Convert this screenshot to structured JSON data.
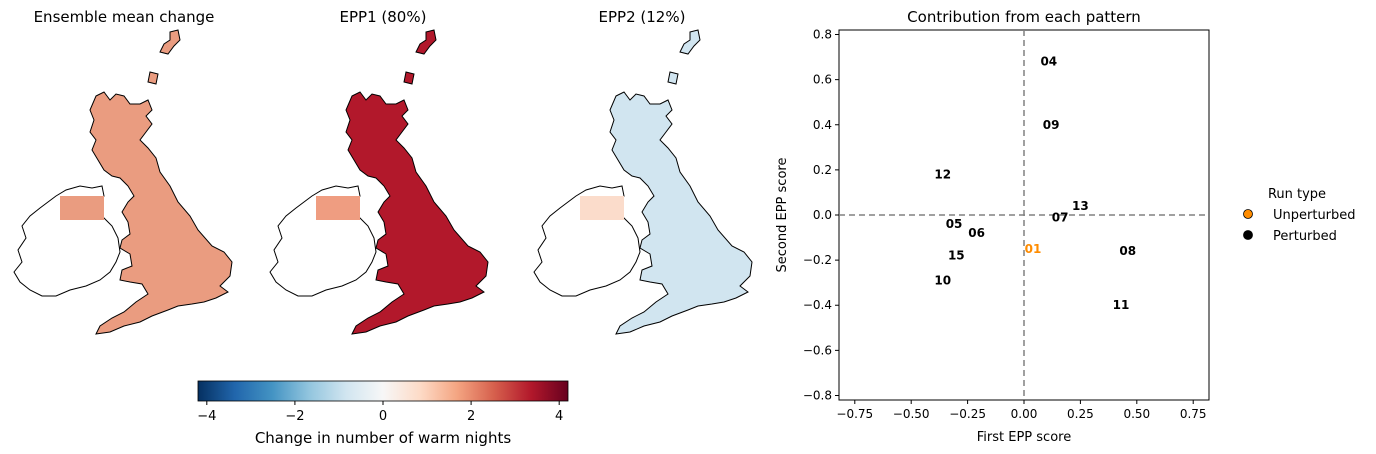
{
  "maps": {
    "panels": [
      {
        "title": "Ensemble mean change",
        "fill": "#ea9c80",
        "ireland_fill": "#ea9c80",
        "uk_fill": "#ea9c80"
      },
      {
        "title": "EPP1 (80%)",
        "fill": "#a51a2b",
        "ireland_fill": "#ef9d81",
        "uk_fill": "#b2182b"
      },
      {
        "title": "EPP2 (12%)",
        "fill": "#d6e7f1",
        "ireland_fill": "#fbdccb",
        "uk_fill": "#d1e5f0"
      }
    ],
    "colorbar": {
      "label": "Change in number of warm nights",
      "min": -4.2,
      "max": 4.2,
      "ticks": [
        -4,
        -2,
        0,
        2,
        4
      ],
      "tick_labels": [
        "−4",
        "−2",
        "0",
        "2",
        "4"
      ],
      "colormap": "RdBu_r",
      "colors": [
        "#053061",
        "#2166ac",
        "#4393c3",
        "#92c5de",
        "#d1e5f0",
        "#f7f7f7",
        "#fddbc7",
        "#f4a582",
        "#d6604d",
        "#b2182b",
        "#67001f"
      ]
    }
  },
  "chart_data": {
    "type": "scatter",
    "title": "Contribution from each pattern",
    "xlabel": "First EPP score",
    "ylabel": "Second EPP score",
    "xlim": [
      -0.82,
      0.82
    ],
    "ylim": [
      -0.82,
      0.82
    ],
    "xticks": [
      -0.75,
      -0.5,
      -0.25,
      0.0,
      0.25,
      0.5,
      0.75
    ],
    "xtick_labels": [
      "−0.75",
      "−0.50",
      "−0.25",
      "0.00",
      "0.25",
      "0.50",
      "0.75"
    ],
    "yticks": [
      -0.8,
      -0.6,
      -0.4,
      -0.2,
      0.0,
      0.2,
      0.4,
      0.6,
      0.8
    ],
    "ytick_labels": [
      "−0.8",
      "−0.6",
      "−0.4",
      "−0.2",
      "0.0",
      "0.2",
      "0.4",
      "0.6",
      "0.8"
    ],
    "reference_lines": {
      "x": 0,
      "y": 0,
      "style": "dashed",
      "color": "#808080"
    },
    "legend": {
      "title": "Run type",
      "placement": "outside-right",
      "entries": [
        {
          "label": "Unperturbed",
          "color": "#ff8c00"
        },
        {
          "label": "Perturbed",
          "color": "#000000"
        }
      ]
    },
    "points": [
      {
        "label": "01",
        "x": 0.04,
        "y": -0.15,
        "run_type": "Unperturbed"
      },
      {
        "label": "04",
        "x": 0.11,
        "y": 0.68,
        "run_type": "Perturbed"
      },
      {
        "label": "05",
        "x": -0.31,
        "y": -0.04,
        "run_type": "Perturbed"
      },
      {
        "label": "06",
        "x": -0.21,
        "y": -0.08,
        "run_type": "Perturbed"
      },
      {
        "label": "07",
        "x": 0.16,
        "y": -0.01,
        "run_type": "Perturbed"
      },
      {
        "label": "08",
        "x": 0.46,
        "y": -0.16,
        "run_type": "Perturbed"
      },
      {
        "label": "09",
        "x": 0.12,
        "y": 0.4,
        "run_type": "Perturbed"
      },
      {
        "label": "10",
        "x": -0.36,
        "y": -0.29,
        "run_type": "Perturbed"
      },
      {
        "label": "11",
        "x": 0.43,
        "y": -0.4,
        "run_type": "Perturbed"
      },
      {
        "label": "12",
        "x": -0.36,
        "y": 0.18,
        "run_type": "Perturbed"
      },
      {
        "label": "13",
        "x": 0.25,
        "y": 0.04,
        "run_type": "Perturbed"
      },
      {
        "label": "15",
        "x": -0.3,
        "y": -0.18,
        "run_type": "Perturbed"
      }
    ]
  }
}
